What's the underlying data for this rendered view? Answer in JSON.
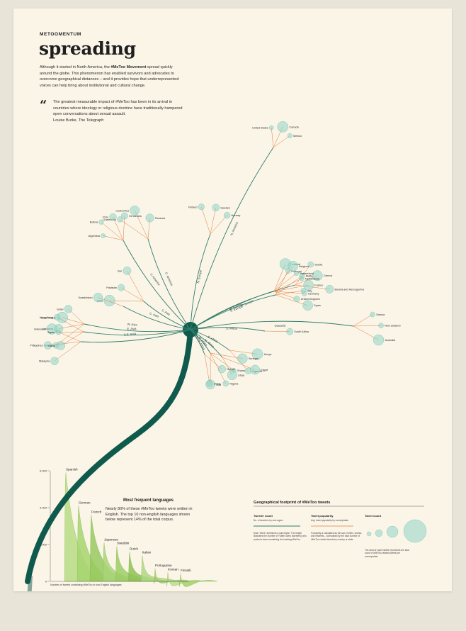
{
  "brand": "METOOMENTUM",
  "title": "spreading",
  "intro": {
    "before": "Although it started in North America, the ",
    "highlight": "#MeToo Movement",
    "after": " spread quickly around the globe. This phenomenon has enabled survivors and advocates to overcome geographical distances – and it provides hope that underrepresented voices can help bring about institutional and cultural change."
  },
  "quote": {
    "mark": "“",
    "text": "The greatest measurable impact of #MeToo has been in its arrival in countries where ideology or religious doctrine have traditionally hampered open conversations about sexual assault.",
    "author": "Louise Burke, The Telegraph"
  },
  "colors": {
    "page": "#fbf5e8",
    "stem": "#0f5a4c",
    "branch": "#2f7d6a",
    "twig": "#e07b3a",
    "bubble": "#8fd3c6",
    "bubble_stroke": "#52b3a2",
    "language_fill": "#9cc95a"
  },
  "regions": [
    {
      "name": "N. America",
      "countries": [
        "United States",
        "Canada",
        "Mexico"
      ]
    },
    {
      "name": "C. America",
      "countries": [
        "Guatemala",
        "Costa Rica",
        "Panama"
      ]
    },
    {
      "name": "S. America",
      "countries": [
        "Argentina",
        "Bolivia",
        "Peru",
        "Venezuela"
      ]
    },
    {
      "name": "N. Europe",
      "countries": [
        "Finland",
        "Sweden",
        "Norway"
      ]
    },
    {
      "name": "E. Europe",
      "countries": [
        "Serbia",
        "Greece",
        "Bosnia and Herzegovina"
      ]
    },
    {
      "name": "S. Europe",
      "countries": [
        "Portugal",
        "Malta",
        "Italy",
        "Spain"
      ]
    },
    {
      "name": "W. Europe",
      "countries": [
        "Ireland",
        "Belgium",
        "Switzerland",
        "Netherlands",
        "France",
        "Germany",
        "United Kingdom"
      ]
    },
    {
      "name": "Oceania",
      "countries": [
        "Samoa",
        "New Zealand",
        "Australia"
      ]
    },
    {
      "name": "S. Africa",
      "countries": [
        "South Africa"
      ]
    },
    {
      "name": "E. Africa",
      "countries": [
        "Kenya",
        "Uganda"
      ]
    },
    {
      "name": "N. Africa",
      "countries": [
        "Egypt",
        "Libya"
      ]
    },
    {
      "name": "W. Africa",
      "countries": [
        "Senegal",
        "Ghana",
        "Nigeria",
        "Mali"
      ]
    },
    {
      "name": "Middle Africa",
      "countries": [
        "Gabon",
        "Chad"
      ]
    },
    {
      "name": "W. Asia",
      "countries": [
        "Turkey",
        "Lebanon",
        "Saudi Arabia",
        "Israel"
      ]
    },
    {
      "name": "S.E. Asia",
      "countries": [
        "Malaysia",
        "Philippines",
        "Indonesia"
      ]
    },
    {
      "name": "E. Asia",
      "countries": [
        "China",
        "Japan",
        "Hong Kong"
      ]
    },
    {
      "name": "S. Asia",
      "countries": [
        "India",
        "Pakistan",
        "Iran"
      ]
    },
    {
      "name": "C. Asia",
      "countries": [
        "Kazakhstan"
      ]
    }
  ],
  "languages": {
    "title": "Most frequent languages",
    "description": "Nearly 80% of these #MeToo tweets were written in English. The top 10 non-english languages shown below represent 14% of the total corpus.",
    "xlabel": "Number of tweets containing #MeToo in non-English languages"
  },
  "legend": {
    "title": "Geographical footprint of #MeToo tweets",
    "tweeter_count": {
      "heading": "Tweeter count",
      "sub": "No. of tweeters by sub-region",
      "text": "Each 'trend' represents a sub-region. The length illustrates the number of Twitter users (tweeters) who posted a tweet containing the hashtag #MeToo."
    },
    "popularity": {
      "heading": "Tweet popularity",
      "sub": "Avg. tweet popularity by country/state",
      "text": "Popularity is calculated as the sum of likes, shares, and retweets – normalised by the total number of #MeToo-related tweets by country or state."
    },
    "tweet_count": {
      "heading": "Tweet count",
      "text": "The area of each bubble represents the total count of #MeToo-related tweets per country/state."
    }
  },
  "chart_data": [
    {
      "type": "area",
      "title": "Most frequent languages",
      "xlabel": "Number of tweets containing #MeToo in non-English languages",
      "ylabel": "",
      "ylim": [
        0,
        6000
      ],
      "yticks": [
        0,
        2000,
        4000,
        6000
      ],
      "categories": [
        "Spanish",
        "German",
        "French",
        "Japanese",
        "Swedish",
        "Dutch",
        "Italian",
        "Portuguese",
        "Korean",
        "Finnish"
      ],
      "values": [
        5900,
        4100,
        3600,
        2100,
        1900,
        1600,
        1400,
        700,
        480,
        420
      ]
    }
  ]
}
